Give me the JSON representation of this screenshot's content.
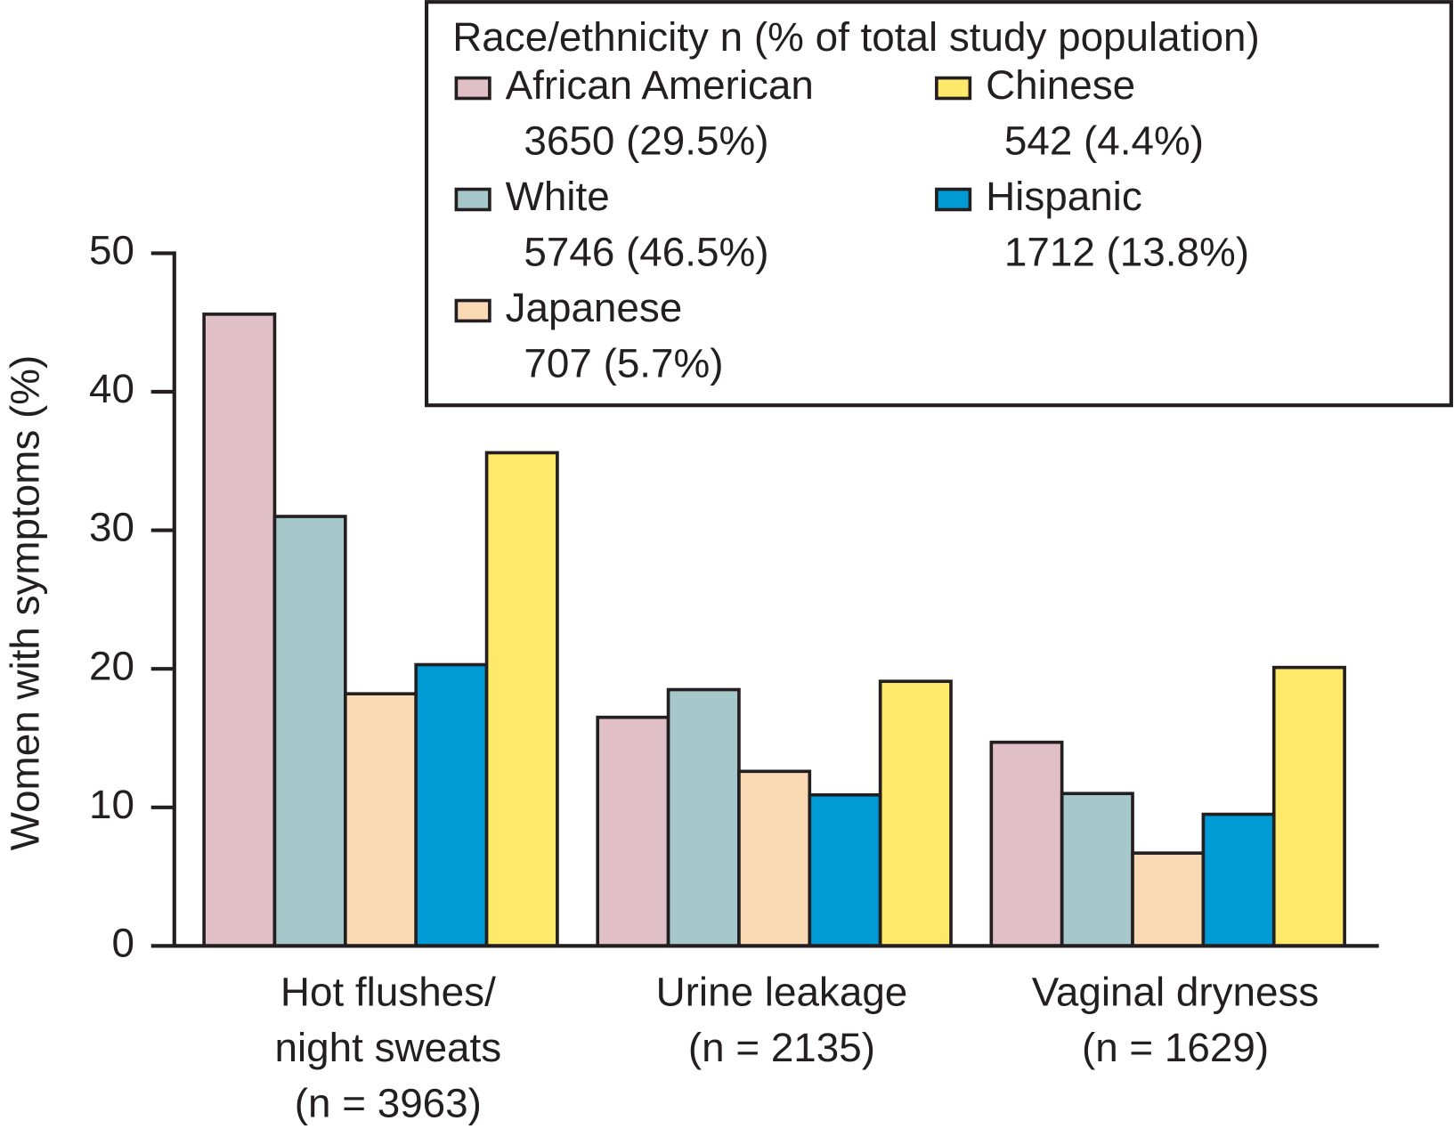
{
  "chart_data": {
    "type": "bar",
    "y_label": "Women with symptoms (%)",
    "legend_title": "Race/ethnicity n (% of total study population)",
    "categories": [
      [
        "Hot flushes/",
        "night sweats",
        "(n = 3963)"
      ],
      [
        "Urine leakage",
        "(n = 2135)"
      ],
      [
        "Vaginal dryness",
        "(n = 1629)"
      ]
    ],
    "series": [
      {
        "name": "African American",
        "detail": "3650 (29.5%)",
        "color": "#e0c0c6",
        "values": [
          45.6,
          16.5,
          14.7
        ]
      },
      {
        "name": "White",
        "detail": "5746 (46.5%)",
        "color": "#a6c8cb",
        "values": [
          31.0,
          18.5,
          11.0
        ]
      },
      {
        "name": "Japanese",
        "detail": "707 (5.7%)",
        "color": "#f9dab4",
        "values": [
          18.2,
          12.6,
          6.7
        ]
      },
      {
        "name": "Hispanic",
        "detail": "1712 (13.8%)",
        "color": "#009bd5",
        "values": [
          20.3,
          10.9,
          9.5
        ]
      },
      {
        "name": "Chinese",
        "detail": "542 (4.4%)",
        "color": "#fee96a",
        "values": [
          35.6,
          19.1,
          20.1
        ]
      }
    ],
    "ylim": [
      0,
      50
    ],
    "yticks": [
      0,
      10,
      20,
      30,
      40,
      50
    ],
    "grid": false
  }
}
